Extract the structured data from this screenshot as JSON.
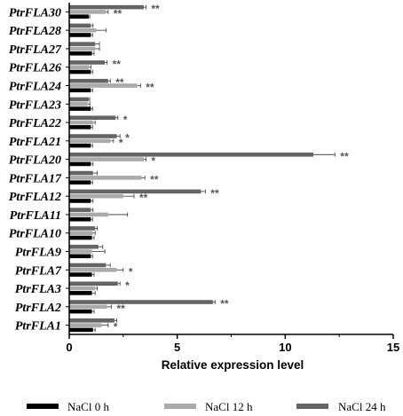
{
  "chart_data": {
    "type": "bar",
    "orientation": "horizontal",
    "categories": [
      "PtrFLA30",
      "PtrFLA28",
      "PtrFLA27",
      "PtrFLA26",
      "PtrFLA24",
      "PtrFLA23",
      "PtrFLA22",
      "PtrFLA21",
      "PtrFLA20",
      "PtrFLA17",
      "PtrFLA12",
      "PtrFLA11",
      "PtrFLA10",
      "PtrFLA9",
      "PtrFLA7",
      "PtrFLA3",
      "PtrFLA2",
      "PtrFLA1"
    ],
    "series": [
      {
        "name": "NaCl 0 h",
        "color": "#000000",
        "values": [
          0.9,
          1.0,
          1.05,
          1.0,
          1.0,
          1.0,
          1.0,
          1.0,
          1.0,
          1.0,
          1.0,
          1.0,
          1.05,
          1.0,
          1.05,
          1.05,
          1.05,
          1.1
        ],
        "errors": [
          0.05,
          0.08,
          0.1,
          0.08,
          0.08,
          0.08,
          0.08,
          0.08,
          0.1,
          0.08,
          0.1,
          0.08,
          0.1,
          0.08,
          0.1,
          0.15,
          0.1,
          0.1
        ]
      },
      {
        "name": "NaCl 12 h",
        "color": "#aaaaaa",
        "values": [
          1.7,
          1.25,
          1.2,
          0.9,
          3.15,
          0.85,
          1.1,
          1.9,
          3.45,
          3.35,
          2.5,
          1.8,
          1.1,
          1.05,
          2.2,
          1.2,
          1.75,
          1.5
        ],
        "errors": [
          0.1,
          0.45,
          0.2,
          0.1,
          0.15,
          0.1,
          0.1,
          0.15,
          0.1,
          0.15,
          0.5,
          0.9,
          0.1,
          0.6,
          0.3,
          0.1,
          0.2,
          0.3
        ],
        "sig": [
          "**",
          "",
          "",
          "",
          "**",
          "",
          "",
          "*",
          "*",
          "**",
          "**",
          "",
          "",
          "",
          "*",
          "",
          "**",
          "*"
        ]
      },
      {
        "name": "NaCl 24 h",
        "color": "#646464",
        "values": [
          3.45,
          1.0,
          1.2,
          1.65,
          1.8,
          0.9,
          2.15,
          2.2,
          11.3,
          1.1,
          6.1,
          1.0,
          1.2,
          1.35,
          1.7,
          2.25,
          6.65,
          2.1
        ],
        "errors": [
          0.1,
          0.1,
          0.2,
          0.1,
          0.1,
          0.05,
          0.1,
          0.15,
          1.0,
          0.2,
          0.2,
          0.1,
          0.1,
          0.2,
          0.2,
          0.1,
          0.1,
          0.1
        ],
        "sig": [
          "**",
          "",
          "",
          "**",
          "**",
          "",
          "*",
          "*",
          "**",
          "",
          "**",
          "",
          "",
          "",
          "",
          "*",
          "**",
          ""
        ]
      }
    ],
    "xlim": [
      0,
      15
    ],
    "xticks": [
      0,
      5,
      10,
      15
    ],
    "xlabel": "Relative expression level",
    "ylabel": "",
    "legend_position": "bottom",
    "grid": false
  }
}
